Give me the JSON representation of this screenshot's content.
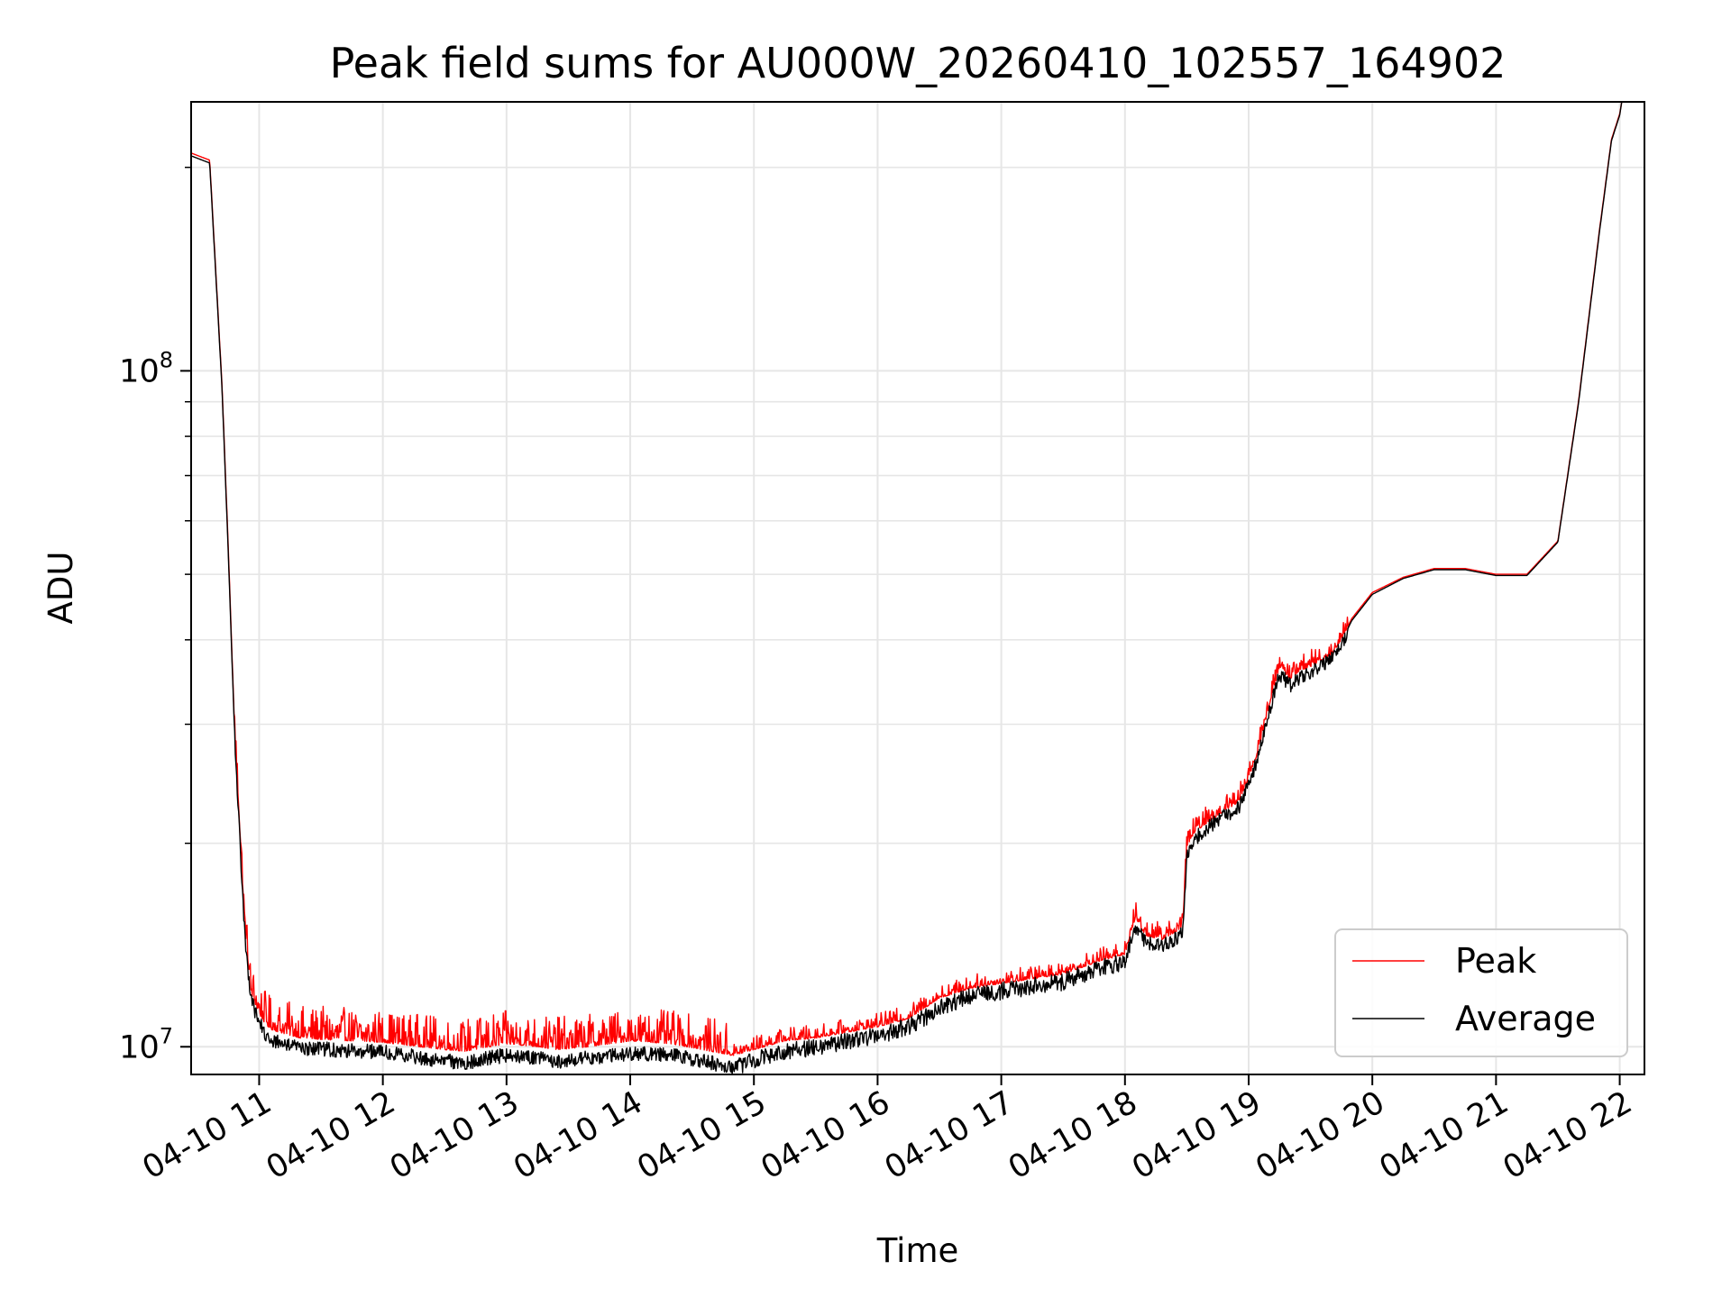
{
  "chart_data": {
    "type": "line",
    "title": "Peak field sums for AU000W_20260410_102557_164902",
    "xlabel": "Time",
    "ylabel": "ADU",
    "x_tick_labels": [
      "04-10 11",
      "04-10 12",
      "04-10 13",
      "04-10 14",
      "04-10 15",
      "04-10 16",
      "04-10 17",
      "04-10 18",
      "04-10 19",
      "04-10 20",
      "04-10 21",
      "04-10 22"
    ],
    "y_scale": "log",
    "y_tick_labels": [
      {
        "value": 10000000,
        "base": "10",
        "exp": "7"
      },
      {
        "value": 100000000,
        "base": "10",
        "exp": "8"
      }
    ],
    "xlim": [
      "2026-04-10 10:27",
      "2026-04-10 22:12"
    ],
    "ylim": [
      9100000,
      250000000
    ],
    "grid": true,
    "legend_position": "lower-right",
    "series": [
      {
        "name": "Peak",
        "color": "#ff0000",
        "x": [
          "2026-04-10 10:27",
          "2026-04-10 10:36",
          "2026-04-10 10:42",
          "2026-04-10 10:45",
          "2026-04-10 10:48",
          "2026-04-10 10:53",
          "2026-04-10 10:56",
          "2026-04-10 11:00",
          "2026-04-10 11:03",
          "2026-04-10 11:06",
          "2026-04-10 11:10",
          "2026-04-10 11:15",
          "2026-04-10 11:20",
          "2026-04-10 11:30",
          "2026-04-10 11:45",
          "2026-04-10 12:00",
          "2026-04-10 12:30",
          "2026-04-10 12:40",
          "2026-04-10 13:00",
          "2026-04-10 13:15",
          "2026-04-10 13:25",
          "2026-04-10 13:40",
          "2026-04-10 14:00",
          "2026-04-10 14:20",
          "2026-04-10 14:35",
          "2026-04-10 14:50",
          "2026-04-10 15:00",
          "2026-04-10 15:15",
          "2026-04-10 15:30",
          "2026-04-10 15:45",
          "2026-04-10 16:00",
          "2026-04-10 16:15",
          "2026-04-10 16:30",
          "2026-04-10 16:45",
          "2026-04-10 17:00",
          "2026-04-10 17:15",
          "2026-04-10 17:30",
          "2026-04-10 17:45",
          "2026-04-10 18:00",
          "2026-04-10 18:05",
          "2026-04-10 18:10",
          "2026-04-10 18:18",
          "2026-04-10 18:28",
          "2026-04-10 18:30",
          "2026-04-10 18:34",
          "2026-04-10 18:45",
          "2026-04-10 18:55",
          "2026-04-10 19:00",
          "2026-04-10 19:05",
          "2026-04-10 19:10",
          "2026-04-10 19:15",
          "2026-04-10 19:20",
          "2026-04-10 19:25",
          "2026-04-10 19:30",
          "2026-04-10 19:40",
          "2026-04-10 19:45",
          "2026-04-10 19:50",
          "2026-04-10 20:00",
          "2026-04-10 20:15",
          "2026-04-10 20:30",
          "2026-04-10 20:45",
          "2026-04-10 21:00",
          "2026-04-10 21:15",
          "2026-04-10 21:30",
          "2026-04-10 21:40",
          "2026-04-10 21:50",
          "2026-04-10 21:56",
          "2026-04-10 22:00",
          "2026-04-10 22:01"
        ],
        "values": [
          210000000,
          205000000,
          95000000,
          55000000,
          30000000,
          15000000,
          12000000,
          11200000,
          10800000,
          10600000,
          10500000,
          10400000,
          10300000,
          10250000,
          10200000,
          10150000,
          9900000,
          9850000,
          10100000,
          10000000,
          9900000,
          10000000,
          10200000,
          10100000,
          9900000,
          9700000,
          9900000,
          10200000,
          10300000,
          10500000,
          10700000,
          11000000,
          11800000,
          12200000,
          12400000,
          12600000,
          12800000,
          13300000,
          13700000,
          15500000,
          14600000,
          14400000,
          15000000,
          19800000,
          20800000,
          22000000,
          23000000,
          25000000,
          27500000,
          32000000,
          36500000,
          35000000,
          36000000,
          36500000,
          38000000,
          40000000,
          43000000,
          47000000,
          49500000,
          51000000,
          51000000,
          50000000,
          50000000,
          56000000,
          90000000,
          160000000,
          220000000,
          240000000,
          250000000
        ],
        "noise": [
          [
            10.8,
            14.8,
            0.1
          ],
          [
            14.8,
            18.0,
            0.04
          ],
          [
            18.0,
            19.8,
            0.05
          ]
        ]
      },
      {
        "name": "Average",
        "color": "#000000",
        "x": [
          "2026-04-10 10:27",
          "2026-04-10 10:36",
          "2026-04-10 10:42",
          "2026-04-10 10:45",
          "2026-04-10 10:48",
          "2026-04-10 10:53",
          "2026-04-10 10:56",
          "2026-04-10 11:00",
          "2026-04-10 11:03",
          "2026-04-10 11:06",
          "2026-04-10 11:10",
          "2026-04-10 11:15",
          "2026-04-10 11:20",
          "2026-04-10 11:30",
          "2026-04-10 11:45",
          "2026-04-10 12:00",
          "2026-04-10 12:30",
          "2026-04-10 12:40",
          "2026-04-10 13:00",
          "2026-04-10 13:15",
          "2026-04-10 13:25",
          "2026-04-10 13:40",
          "2026-04-10 14:00",
          "2026-04-10 14:20",
          "2026-04-10 14:35",
          "2026-04-10 14:50",
          "2026-04-10 15:00",
          "2026-04-10 15:15",
          "2026-04-10 15:30",
          "2026-04-10 15:45",
          "2026-04-10 16:00",
          "2026-04-10 16:15",
          "2026-04-10 16:30",
          "2026-04-10 16:45",
          "2026-04-10 17:00",
          "2026-04-10 17:15",
          "2026-04-10 17:30",
          "2026-04-10 17:45",
          "2026-04-10 18:00",
          "2026-04-10 18:05",
          "2026-04-10 18:10",
          "2026-04-10 18:18",
          "2026-04-10 18:28",
          "2026-04-10 18:30",
          "2026-04-10 18:34",
          "2026-04-10 18:45",
          "2026-04-10 18:55",
          "2026-04-10 19:00",
          "2026-04-10 19:05",
          "2026-04-10 19:10",
          "2026-04-10 19:15",
          "2026-04-10 19:20",
          "2026-04-10 19:25",
          "2026-04-10 19:30",
          "2026-04-10 19:40",
          "2026-04-10 19:45",
          "2026-04-10 19:50",
          "2026-04-10 20:00",
          "2026-04-10 20:15",
          "2026-04-10 20:30",
          "2026-04-10 20:45",
          "2026-04-10 21:00",
          "2026-04-10 21:15",
          "2026-04-10 21:30",
          "2026-04-10 21:40",
          "2026-04-10 21:50",
          "2026-04-10 21:56",
          "2026-04-10 22:00",
          "2026-04-10 22:01"
        ],
        "values": [
          208000000,
          203000000,
          94000000,
          54000000,
          29500000,
          14800000,
          11800000,
          11000000,
          10500000,
          10300000,
          10200000,
          10100000,
          10050000,
          10000000,
          9950000,
          9900000,
          9600000,
          9550000,
          9800000,
          9700000,
          9600000,
          9700000,
          9850000,
          9800000,
          9600000,
          9400000,
          9650000,
          9950000,
          10050000,
          10300000,
          10500000,
          10800000,
          11500000,
          12000000,
          12200000,
          12400000,
          12600000,
          13100000,
          13500000,
          15200000,
          14400000,
          14200000,
          14800000,
          19500000,
          20500000,
          21800000,
          22700000,
          24700000,
          27200000,
          31500000,
          36000000,
          34500000,
          35500000,
          36000000,
          37600000,
          39700000,
          42700000,
          46700000,
          49300000,
          50800000,
          50800000,
          49800000,
          49800000,
          55800000,
          89500000,
          159000000,
          219000000,
          239000000,
          250000000
        ],
        "noise": [
          [
            10.8,
            14.8,
            0.05
          ],
          [
            14.8,
            18.0,
            0.06
          ],
          [
            18.0,
            19.8,
            0.05
          ]
        ]
      }
    ]
  }
}
